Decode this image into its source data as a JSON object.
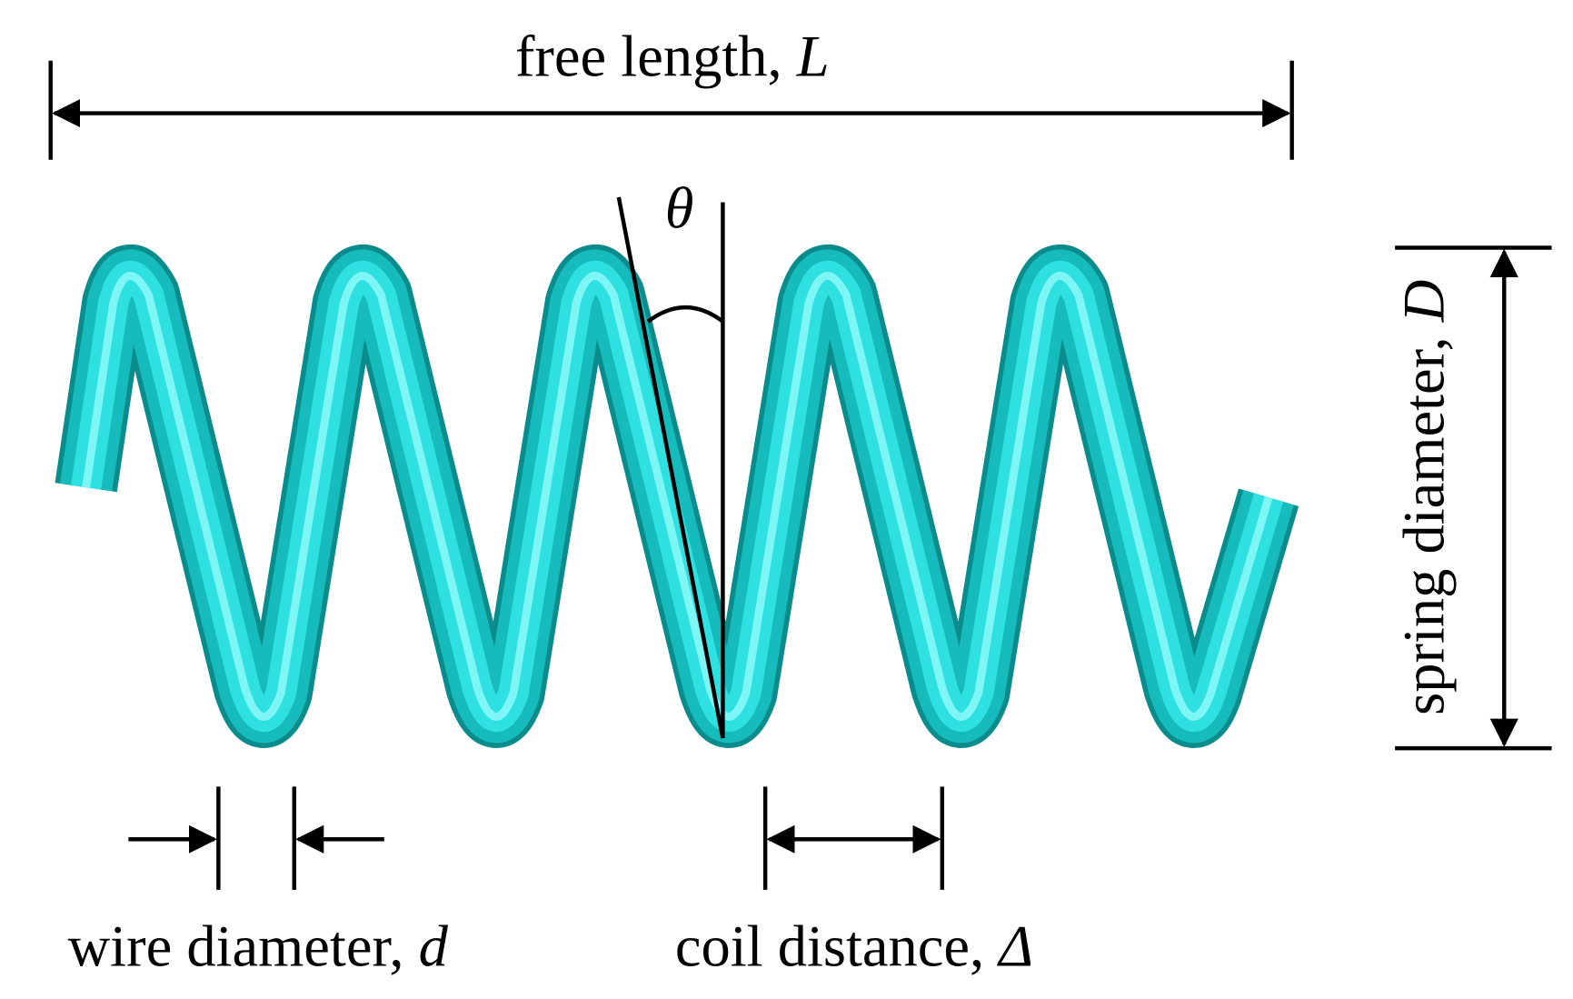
{
  "labels": {
    "free_length": {
      "text": "free length,",
      "symbol": "L"
    },
    "angle": {
      "symbol": "θ"
    },
    "spring_diameter": {
      "text": "spring diameter,",
      "symbol": "D"
    },
    "wire_diameter": {
      "text": "wire diameter,",
      "symbol": "d"
    },
    "coil_distance": {
      "text": "coil distance,",
      "symbol": "Δ"
    }
  }
}
